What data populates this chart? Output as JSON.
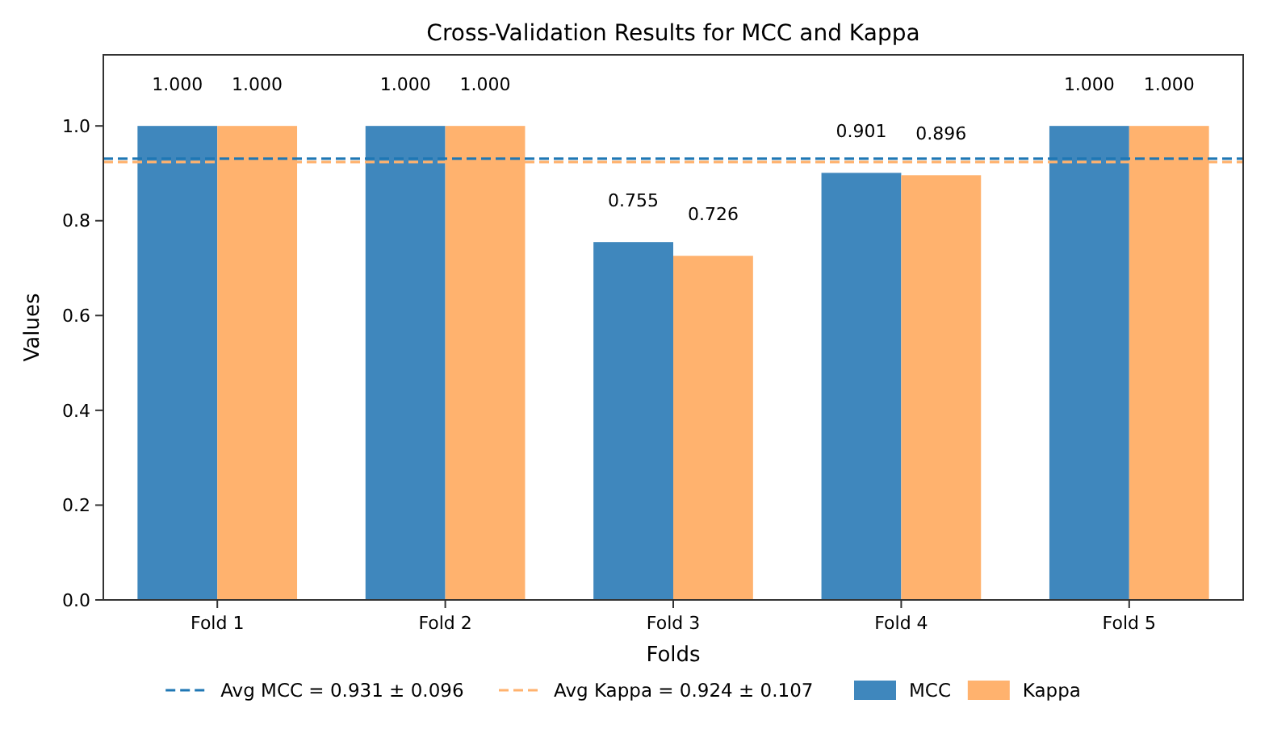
{
  "chart_data": {
    "type": "bar",
    "title": "Cross-Validation Results for MCC and Kappa",
    "xlabel": "Folds",
    "ylabel": "Values",
    "categories": [
      "Fold 1",
      "Fold 2",
      "Fold 3",
      "Fold 4",
      "Fold 5"
    ],
    "series": [
      {
        "name": "MCC",
        "color": "#3f87bd",
        "values": [
          1.0,
          1.0,
          0.755,
          0.901,
          1.0
        ],
        "value_labels": [
          "1.000",
          "1.000",
          "0.755",
          "0.901",
          "1.000"
        ]
      },
      {
        "name": "Kappa",
        "color": "#ffb26e",
        "values": [
          1.0,
          1.0,
          0.726,
          0.896,
          1.0
        ],
        "value_labels": [
          "1.000",
          "1.000",
          "0.726",
          "0.896",
          "1.000"
        ]
      }
    ],
    "ylim": [
      0,
      1.15
    ],
    "yticks": [
      {
        "value": 0,
        "label": "0.0"
      },
      {
        "value": 0.2,
        "label": "0.2"
      },
      {
        "value": 0.4,
        "label": "0.4"
      },
      {
        "value": 0.6,
        "label": "0.6"
      },
      {
        "value": 0.8,
        "label": "0.8"
      },
      {
        "value": 1,
        "label": "1.0"
      }
    ],
    "ref_lines": [
      {
        "axis": "y",
        "value": 0.931,
        "label": "Avg MCC = 0.931 ± 0.096",
        "color": "#1f77b4",
        "line_style": "dashed"
      },
      {
        "axis": "y",
        "value": 0.924,
        "label": "Avg Kappa = 0.924 ± 0.107",
        "color": "#ffb26e",
        "line_style": "dashed"
      }
    ],
    "legend": "bottom",
    "grid": false
  }
}
